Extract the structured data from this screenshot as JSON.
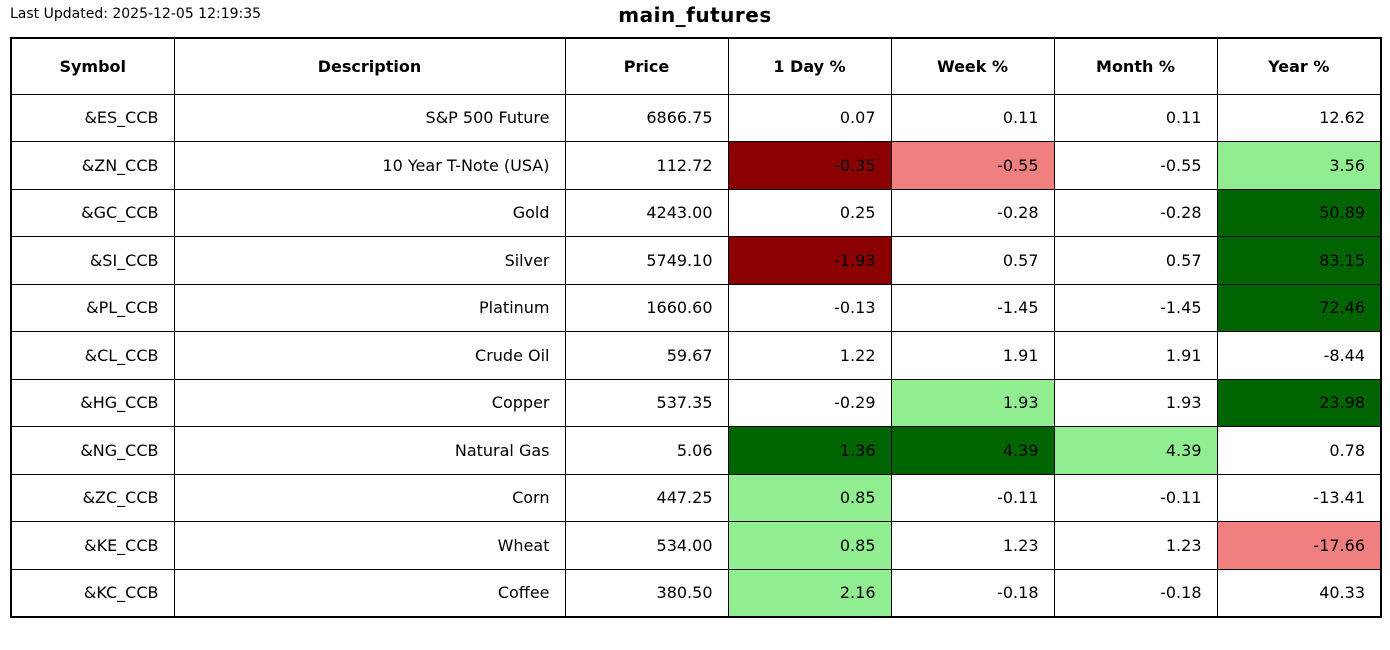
{
  "header": {
    "last_updated": "Last Updated: 2025-12-05 12:19:35",
    "title": "main_futures"
  },
  "palette": {
    "strong_up": "#006400",
    "up": "#90ee90",
    "down": "#f08080",
    "strong_down": "#8b0000",
    "neutral": "#ffffff"
  },
  "chart_data": {
    "type": "table",
    "title": "main_futures",
    "columns": [
      "Symbol",
      "Description",
      "Price",
      "1 Day %",
      "Week %",
      "Month %",
      "Year %"
    ],
    "rows": [
      {
        "symbol": "&ES_CCB",
        "description": "S&P 500 Future",
        "price": "6866.75",
        "pcts": [
          "0.07",
          "0.11",
          "0.11",
          "12.62"
        ],
        "pct_colors": [
          null,
          null,
          null,
          null
        ]
      },
      {
        "symbol": "&ZN_CCB",
        "description": "10 Year T-Note (USA)",
        "price": "112.72",
        "pcts": [
          "-0.35",
          "-0.55",
          "-0.55",
          "3.56"
        ],
        "pct_colors": [
          "strong_down",
          "down",
          null,
          "up"
        ]
      },
      {
        "symbol": "&GC_CCB",
        "description": "Gold",
        "price": "4243.00",
        "pcts": [
          "0.25",
          "-0.28",
          "-0.28",
          "50.89"
        ],
        "pct_colors": [
          null,
          null,
          null,
          "strong_up"
        ]
      },
      {
        "symbol": "&SI_CCB",
        "description": "Silver",
        "price": "5749.10",
        "pcts": [
          "-1.93",
          "0.57",
          "0.57",
          "83.15"
        ],
        "pct_colors": [
          "strong_down",
          null,
          null,
          "strong_up"
        ]
      },
      {
        "symbol": "&PL_CCB",
        "description": "Platinum",
        "price": "1660.60",
        "pcts": [
          "-0.13",
          "-1.45",
          "-1.45",
          "72.46"
        ],
        "pct_colors": [
          null,
          null,
          null,
          "strong_up"
        ]
      },
      {
        "symbol": "&CL_CCB",
        "description": "Crude Oil",
        "price": "59.67",
        "pcts": [
          "1.22",
          "1.91",
          "1.91",
          "-8.44"
        ],
        "pct_colors": [
          null,
          null,
          null,
          null
        ]
      },
      {
        "symbol": "&HG_CCB",
        "description": "Copper",
        "price": "537.35",
        "pcts": [
          "-0.29",
          "1.93",
          "1.93",
          "23.98"
        ],
        "pct_colors": [
          null,
          "up",
          null,
          "strong_up"
        ]
      },
      {
        "symbol": "&NG_CCB",
        "description": "Natural Gas",
        "price": "5.06",
        "pcts": [
          "1.36",
          "4.39",
          "4.39",
          "0.78"
        ],
        "pct_colors": [
          "strong_up",
          "strong_up",
          "up",
          null
        ]
      },
      {
        "symbol": "&ZC_CCB",
        "description": "Corn",
        "price": "447.25",
        "pcts": [
          "0.85",
          "-0.11",
          "-0.11",
          "-13.41"
        ],
        "pct_colors": [
          "up",
          null,
          null,
          null
        ]
      },
      {
        "symbol": "&KE_CCB",
        "description": "Wheat",
        "price": "534.00",
        "pcts": [
          "0.85",
          "1.23",
          "1.23",
          "-17.66"
        ],
        "pct_colors": [
          "up",
          null,
          null,
          "down"
        ]
      },
      {
        "symbol": "&KC_CCB",
        "description": "Coffee",
        "price": "380.50",
        "pcts": [
          "2.16",
          "-0.18",
          "-0.18",
          "40.33"
        ],
        "pct_colors": [
          "up",
          null,
          null,
          null
        ]
      }
    ]
  }
}
